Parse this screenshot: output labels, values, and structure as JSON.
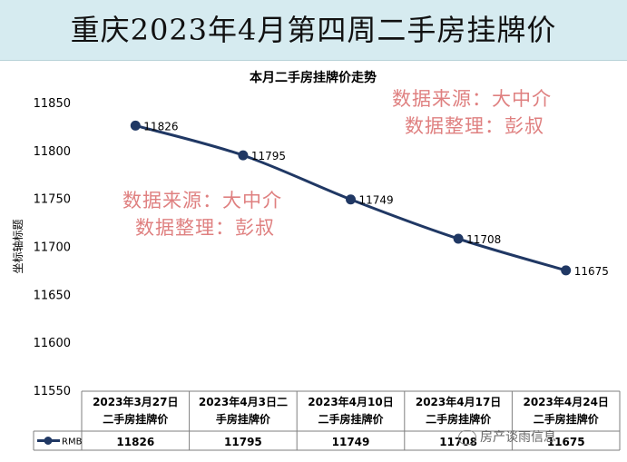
{
  "page_title": "重庆2023年4月第四周二手房挂牌价",
  "watermarks": [
    {
      "line1": "数据来源：大中介",
      "line2": "数据整理：彭叔"
    },
    {
      "line1": "数据来源：大中介",
      "line2": "数据整理：彭叔"
    }
  ],
  "footer_text": "房产谈雨信息",
  "chart_data": {
    "type": "line",
    "title": "本月二手房挂牌价走势",
    "ylabel": "坐标轴标题",
    "xlabel": "",
    "ylim": [
      11550,
      11850
    ],
    "yticks": [
      11850,
      11800,
      11750,
      11700,
      11650,
      11600,
      11550
    ],
    "grid": false,
    "legend": "data-table",
    "categories": [
      "2023年3月27日二手房挂牌价",
      "2023年4月3日二手房挂牌价",
      "2023年4月10日二手房挂牌价",
      "2023年4月17日二手房挂牌价",
      "2023年4月24日二手房挂牌价"
    ],
    "series": [
      {
        "name": "RMB",
        "values": [
          11826,
          11795,
          11749,
          11708,
          11675
        ],
        "color": "#203864"
      }
    ]
  }
}
